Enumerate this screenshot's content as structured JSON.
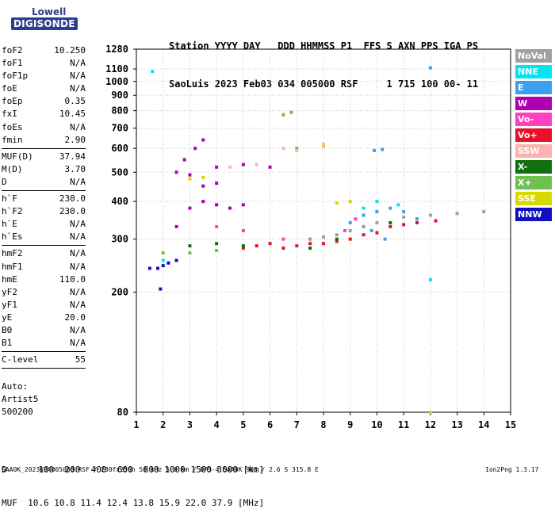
{
  "logo": {
    "top": "Lowell",
    "bottom": "DIGISONDE"
  },
  "header": {
    "line1": "Station YYYY DAY   DDD HHMMSS P1  FFS S AXN PPS IGA PS",
    "line2": "SaoLuis 2023 Feb03 034 005000 RSF     1 715 100 00- 11"
  },
  "params_group1": [
    {
      "name": "foF2",
      "value": "10.250"
    },
    {
      "name": "foF1",
      "value": "N/A"
    },
    {
      "name": "foF1p",
      "value": "N/A"
    },
    {
      "name": "foE",
      "value": "N/A"
    },
    {
      "name": "foEp",
      "value": "0.35"
    },
    {
      "name": "fxI",
      "value": "10.45"
    },
    {
      "name": "foEs",
      "value": "N/A"
    },
    {
      "name": "fmin",
      "value": "2.90"
    }
  ],
  "params_group2": [
    {
      "name": "MUF(D)",
      "value": "37.94"
    },
    {
      "name": "M(D)",
      "value": "3.70"
    },
    {
      "name": "D",
      "value": "N/A"
    }
  ],
  "params_group3": [
    {
      "name": "h`F",
      "value": "230.0"
    },
    {
      "name": "h`F2",
      "value": "230.0"
    },
    {
      "name": "h`E",
      "value": "N/A"
    },
    {
      "name": "h`Es",
      "value": "N/A"
    }
  ],
  "params_group4": [
    {
      "name": "hmF2",
      "value": "N/A"
    },
    {
      "name": "hmF1",
      "value": "N/A"
    },
    {
      "name": "hmE",
      "value": "110.0"
    },
    {
      "name": "yF2",
      "value": "N/A"
    },
    {
      "name": "yF1",
      "value": "N/A"
    },
    {
      "name": "yE",
      "value": "20.0"
    },
    {
      "name": "B0",
      "value": "N/A"
    },
    {
      "name": "B1",
      "value": "N/A"
    }
  ],
  "params_group5": [
    {
      "name": "C-level",
      "value": "55"
    }
  ],
  "auto": {
    "line1": "Auto:",
    "line2": "Artist5",
    "line3": "500200"
  },
  "footer": {
    "d_row": "D      100  200  400  600  800 1000 1500 3000 [km]",
    "muf_row": "MUF  10.6 10.8 11.4 12.4 13.8 15.9 22.0 37.9 [MHz]"
  },
  "signature": "SAA0K_2023034005000.RSF / 280fx256h 50 kHz 5.0 km / DPS-4 SAA0K 903 / 2.6 S 315.8 E",
  "version": "Ion2Png 1.3.17",
  "legend": [
    {
      "label": "NoVal",
      "color": "#a0a0a0"
    },
    {
      "label": "NNE",
      "color": "#00e5f0"
    },
    {
      "label": "E",
      "color": "#3aa0f0"
    },
    {
      "label": "W",
      "color": "#b000b0"
    },
    {
      "label": "Vo-",
      "color": "#ff40c0"
    },
    {
      "label": "Vo+",
      "color": "#e8102a"
    },
    {
      "label": "SSW",
      "color": "#ffb0b0"
    },
    {
      "label": "X-",
      "color": "#107010"
    },
    {
      "label": "X+",
      "color": "#70c050"
    },
    {
      "label": "SSE",
      "color": "#d8d800"
    },
    {
      "label": "NNW",
      "color": "#1010c0"
    }
  ],
  "chart_data": {
    "type": "scatter",
    "title": "",
    "xlabel": "",
    "ylabel": "",
    "xlim": [
      1,
      15
    ],
    "ylim": [
      80,
      1280
    ],
    "y_scale": "log",
    "x_ticks": [
      1,
      2,
      3,
      4,
      5,
      6,
      7,
      8,
      9,
      10,
      11,
      12,
      13,
      14,
      15
    ],
    "y_ticks": [
      80,
      200,
      300,
      400,
      500,
      600,
      700,
      800,
      900,
      1000,
      1100,
      1280
    ],
    "grid": true,
    "legend_position": "right",
    "series": [
      {
        "name": "Vo+",
        "color": "#e8102a",
        "points": [
          [
            5.0,
            280
          ],
          [
            5.5,
            285
          ],
          [
            6.0,
            290
          ],
          [
            6.5,
            280
          ],
          [
            7.0,
            285
          ],
          [
            7.5,
            290
          ],
          [
            8.0,
            290
          ],
          [
            8.5,
            295
          ],
          [
            9.0,
            300
          ],
          [
            9.5,
            310
          ],
          [
            10.0,
            315
          ],
          [
            10.5,
            330
          ],
          [
            11.0,
            335
          ],
          [
            11.5,
            340
          ],
          [
            12.2,
            345
          ]
        ]
      },
      {
        "name": "W",
        "color": "#b000b0",
        "points": [
          [
            2.5,
            330
          ],
          [
            3.0,
            380
          ],
          [
            3.5,
            400
          ],
          [
            4.0,
            390
          ],
          [
            4.5,
            380
          ],
          [
            5.0,
            390
          ],
          [
            3.5,
            450
          ],
          [
            4.0,
            460
          ],
          [
            2.8,
            550
          ],
          [
            3.2,
            600
          ],
          [
            3.5,
            640
          ],
          [
            2.5,
            500
          ],
          [
            3.0,
            490
          ],
          [
            4.0,
            520
          ],
          [
            5.0,
            530
          ],
          [
            6.0,
            520
          ]
        ]
      },
      {
        "name": "E",
        "color": "#3aa0f0",
        "points": [
          [
            9.0,
            340
          ],
          [
            9.5,
            360
          ],
          [
            10.0,
            370
          ],
          [
            10.5,
            380
          ],
          [
            11.0,
            370
          ],
          [
            11.5,
            350
          ],
          [
            9.8,
            320
          ],
          [
            10.3,
            300
          ],
          [
            12.0,
            1110
          ],
          [
            9.9,
            590
          ],
          [
            10.2,
            595
          ]
        ]
      },
      {
        "name": "X-",
        "color": "#107010",
        "points": [
          [
            3.0,
            285
          ],
          [
            4.0,
            290
          ],
          [
            5.0,
            285
          ],
          [
            7.5,
            280
          ],
          [
            8.5,
            300
          ],
          [
            9.5,
            330
          ],
          [
            10.5,
            340
          ]
        ]
      },
      {
        "name": "X+",
        "color": "#70c050",
        "points": [
          [
            2.0,
            270
          ],
          [
            3.0,
            270
          ],
          [
            4.0,
            275
          ],
          [
            6.5,
            775
          ],
          [
            6.8,
            790
          ],
          [
            7.0,
            600
          ]
        ]
      },
      {
        "name": "NNW",
        "color": "#1010c0",
        "points": [
          [
            1.5,
            240
          ],
          [
            1.8,
            240
          ],
          [
            2.0,
            245
          ],
          [
            2.2,
            250
          ],
          [
            2.5,
            255
          ],
          [
            1.9,
            205
          ]
        ]
      },
      {
        "name": "NNE",
        "color": "#00e5f0",
        "points": [
          [
            2.0,
            255
          ],
          [
            9.5,
            380
          ],
          [
            10.0,
            400
          ],
          [
            10.8,
            390
          ],
          [
            12.0,
            220
          ],
          [
            1.6,
            1080
          ]
        ]
      },
      {
        "name": "SSE",
        "color": "#d8d800",
        "points": [
          [
            3.0,
            475
          ],
          [
            3.5,
            480
          ],
          [
            8.0,
            610
          ],
          [
            8.5,
            395
          ],
          [
            9.0,
            400
          ],
          [
            12.0,
            80
          ]
        ]
      },
      {
        "name": "Vo-",
        "color": "#ff40c0",
        "points": [
          [
            4.0,
            330
          ],
          [
            5.0,
            320
          ],
          [
            6.5,
            300
          ],
          [
            7.5,
            300
          ],
          [
            8.8,
            320
          ],
          [
            9.2,
            350
          ]
        ]
      },
      {
        "name": "SSW",
        "color": "#ffb0b0",
        "points": [
          [
            4.5,
            520
          ],
          [
            5.5,
            530
          ],
          [
            6.5,
            600
          ],
          [
            7.0,
            590
          ],
          [
            8.0,
            620
          ]
        ]
      },
      {
        "name": "NoVal",
        "color": "#a0a0a0",
        "points": [
          [
            7.5,
            300
          ],
          [
            8.0,
            305
          ],
          [
            8.5,
            310
          ],
          [
            9.0,
            320
          ],
          [
            9.5,
            330
          ],
          [
            10.0,
            340
          ],
          [
            11.0,
            355
          ],
          [
            12.0,
            360
          ],
          [
            13.0,
            365
          ],
          [
            14.0,
            370
          ]
        ]
      }
    ]
  }
}
